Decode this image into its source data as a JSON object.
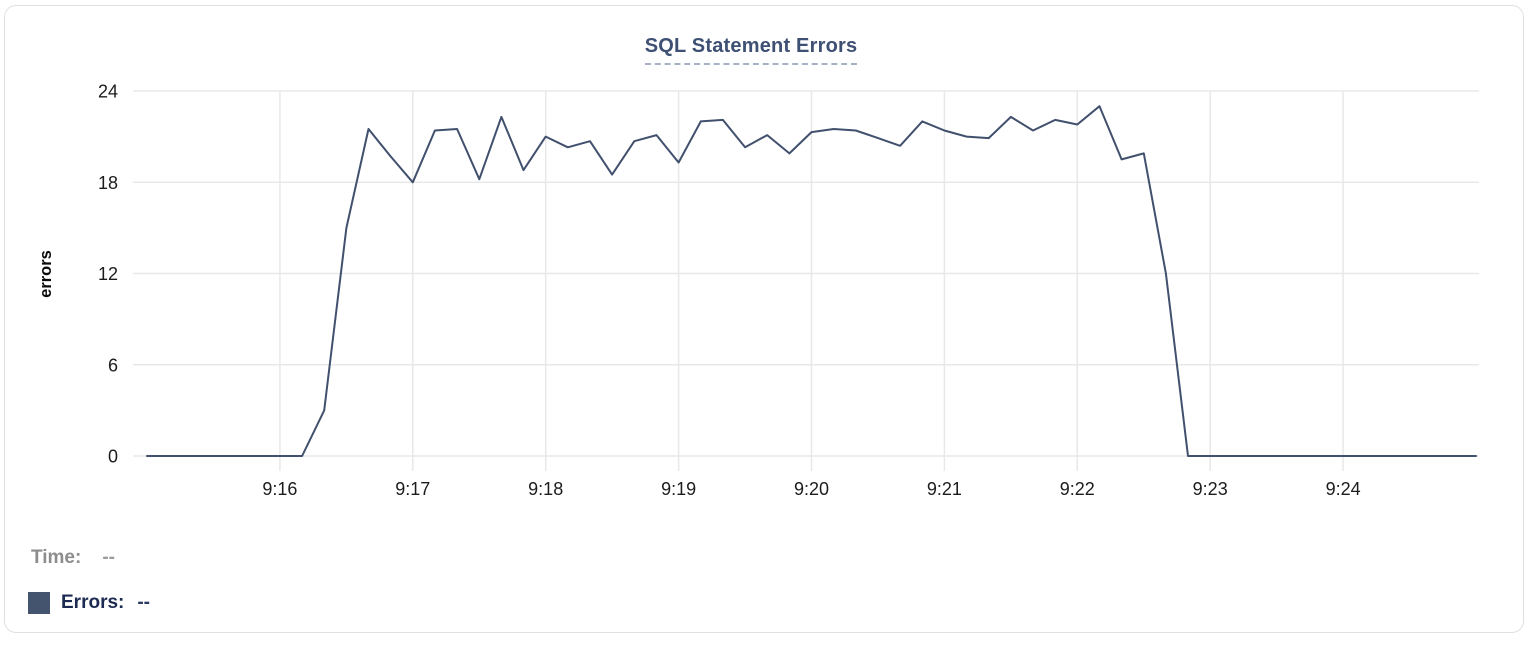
{
  "card": {
    "background": "#ffffff",
    "border_color": "#e0e0e0"
  },
  "chart_data": {
    "type": "line",
    "title": "SQL Statement Errors",
    "xlabel": "",
    "ylabel": "errors",
    "ylim": [
      0,
      24
    ],
    "yticks": [
      0,
      6,
      12,
      18,
      24
    ],
    "xtick_labels": [
      "9:16",
      "9:17",
      "9:18",
      "9:19",
      "9:20",
      "9:21",
      "9:22",
      "9:23",
      "9:24"
    ],
    "x_range": [
      "9:15:00",
      "9:25:00"
    ],
    "grid": true,
    "legend_position": "bottom-left",
    "series": [
      {
        "name": "Errors",
        "color": "#41506d",
        "x_start": "9:15:00",
        "x_step_seconds": 10,
        "values": [
          0,
          0,
          0,
          0,
          0,
          0,
          0,
          0,
          3,
          15,
          21.5,
          19.7,
          18,
          21.4,
          21.5,
          18.2,
          22.3,
          18.8,
          21,
          20.3,
          20.7,
          18.5,
          20.7,
          21.1,
          19.3,
          22,
          22.1,
          20.3,
          21.1,
          19.9,
          21.3,
          21.5,
          21.4,
          20.9,
          20.4,
          22,
          21.4,
          21,
          20.9,
          22.3,
          21.4,
          22.1,
          21.8,
          23,
          19.5,
          19.9,
          12,
          0,
          0,
          0,
          0,
          0,
          0,
          0,
          0,
          0,
          0,
          0,
          0,
          0,
          0
        ]
      }
    ]
  },
  "tooltip": {
    "time_label": "Time:",
    "time_value": "--",
    "errors_label": "Errors:",
    "errors_value": "--",
    "marker_color": "#44536e"
  },
  "colors": {
    "title": "#3e5073",
    "title_underline": "#a7b1c5",
    "grid": "#e8e8e8",
    "tick_label": "#1c1c1c",
    "axis_label": "#0a0a0a",
    "line": "#41506d",
    "time_text": "#8d8d8d",
    "errors_text": "#1d2b52"
  }
}
